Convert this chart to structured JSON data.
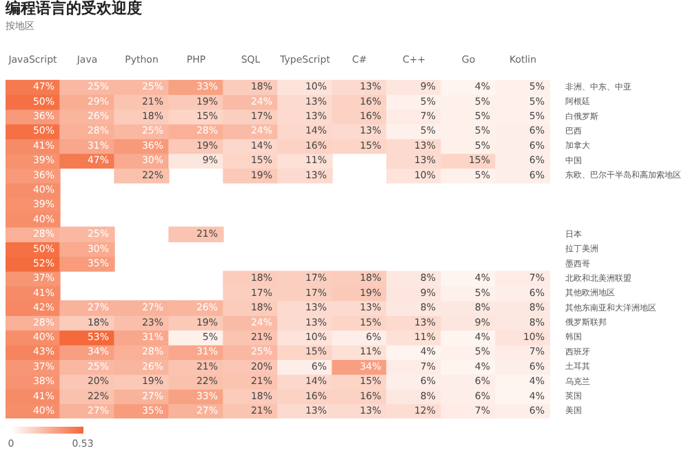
{
  "chart_data": {
    "type": "heatmap",
    "title": "编程语言的受欢迎度",
    "subtitle": "按地区",
    "categories": [
      "JavaScript",
      "Java",
      "Python",
      "PHP",
      "SQL",
      "TypeScript",
      "C#",
      "C++",
      "Go",
      "Kotlin"
    ],
    "y_categories": [
      "非洲、中东、中亚",
      "阿根廷",
      "白俄罗斯",
      "巴西",
      "加拿大",
      "中国",
      "东欧、巴尔干半岛和高加索地区",
      null,
      null,
      null,
      "日本",
      "拉丁美洲",
      "墨西哥",
      "北欧和北美洲联盟",
      "其他欧洲地区",
      "其他东南亚和大洋洲地区",
      "俄罗斯联邦",
      "韩国",
      "西班牙",
      "土耳其",
      "乌克兰",
      "英国",
      "美国"
    ],
    "color": "#f4693a",
    "clim": [
      0,
      0.53
    ],
    "cticks": [
      0,
      0.53
    ],
    "cells": [
      [
        0.47,
        0.25,
        0.25,
        0.33,
        0.18,
        0.1,
        0.13,
        0.09,
        0.04,
        0.05
      ],
      [
        0.5,
        0.29,
        0.21,
        0.19,
        0.24,
        0.13,
        0.16,
        0.05,
        0.05,
        0.05
      ],
      [
        0.36,
        0.26,
        0.18,
        0.15,
        0.17,
        0.13,
        0.16,
        0.07,
        0.05,
        0.05
      ],
      [
        0.5,
        0.28,
        0.25,
        0.28,
        0.24,
        0.14,
        0.13,
        0.05,
        0.05,
        0.06
      ],
      [
        0.41,
        0.31,
        0.36,
        0.19,
        0.14,
        0.16,
        0.15,
        0.13,
        0.05,
        0.06
      ],
      [
        0.39,
        0.47,
        0.3,
        0.09,
        0.15,
        0.11,
        null,
        0.13,
        0.15,
        0.06
      ],
      [
        0.36,
        null,
        0.22,
        null,
        0.19,
        0.13,
        null,
        0.1,
        0.05,
        0.06
      ],
      [
        0.4,
        null,
        null,
        null,
        null,
        null,
        null,
        null,
        null,
        null
      ],
      [
        0.39,
        null,
        null,
        null,
        null,
        null,
        null,
        null,
        null,
        null
      ],
      [
        0.4,
        null,
        null,
        null,
        null,
        null,
        null,
        null,
        null,
        null
      ],
      [
        0.28,
        0.25,
        null,
        0.21,
        null,
        null,
        null,
        null,
        null,
        null
      ],
      [
        0.5,
        0.3,
        null,
        null,
        null,
        null,
        null,
        null,
        null,
        null
      ],
      [
        0.52,
        0.35,
        null,
        null,
        null,
        null,
        null,
        null,
        null,
        null
      ],
      [
        0.37,
        null,
        null,
        null,
        0.18,
        0.17,
        0.18,
        0.08,
        0.04,
        0.07
      ],
      [
        0.41,
        null,
        null,
        null,
        0.17,
        0.17,
        0.19,
        0.09,
        0.05,
        0.06
      ],
      [
        0.42,
        0.27,
        0.27,
        0.26,
        0.18,
        0.13,
        0.13,
        0.08,
        0.08,
        0.08
      ],
      [
        0.28,
        0.18,
        0.23,
        0.19,
        0.24,
        0.13,
        0.15,
        0.13,
        0.09,
        0.08
      ],
      [
        0.4,
        0.53,
        0.31,
        0.05,
        0.21,
        0.1,
        0.06,
        0.11,
        0.04,
        0.1
      ],
      [
        0.43,
        0.34,
        0.28,
        0.31,
        0.25,
        0.15,
        0.11,
        0.04,
        0.05,
        0.07
      ],
      [
        0.37,
        0.25,
        0.26,
        0.21,
        0.2,
        0.06,
        0.34,
        0.07,
        0.04,
        0.06
      ],
      [
        0.38,
        0.2,
        0.19,
        0.22,
        0.21,
        0.14,
        0.15,
        0.06,
        0.06,
        0.04
      ],
      [
        0.41,
        0.22,
        0.27,
        0.33,
        0.18,
        0.16,
        0.16,
        0.08,
        0.06,
        0.04
      ],
      [
        0.4,
        0.27,
        0.35,
        0.27,
        0.21,
        0.13,
        0.13,
        0.12,
        0.07,
        0.06
      ]
    ],
    "cell_labels": [
      [
        "47%",
        "25%",
        "25%",
        "33%",
        "18%",
        "10%",
        "13%",
        "9%",
        "4%",
        "5%"
      ],
      [
        "50%",
        "29%",
        "21%",
        "19%",
        "24%",
        "13%",
        "16%",
        "5%",
        "5%",
        "5%"
      ],
      [
        "36%",
        "26%",
        "18%",
        "15%",
        "17%",
        "13%",
        "16%",
        "7%",
        "5%",
        "5%"
      ],
      [
        "50%",
        "28%",
        "25%",
        "28%",
        "24%",
        "14%",
        "13%",
        "5%",
        "5%",
        "6%"
      ],
      [
        "41%",
        "31%",
        "36%",
        "19%",
        "14%",
        "16%",
        "15%",
        "13%",
        "5%",
        "6%"
      ],
      [
        "39%",
        "47%",
        "30%",
        "9%",
        "15%",
        "11%",
        null,
        "13%",
        "15%",
        "6%"
      ],
      [
        "36%",
        null,
        "22%",
        null,
        "19%",
        "13%",
        null,
        "10%",
        "5%",
        "6%"
      ],
      [
        "40%",
        null,
        null,
        null,
        null,
        null,
        null,
        null,
        null,
        null
      ],
      [
        "39%",
        null,
        null,
        null,
        null,
        null,
        null,
        null,
        null,
        null
      ],
      [
        "40%",
        null,
        null,
        null,
        null,
        null,
        null,
        null,
        null,
        null
      ],
      [
        "28%",
        "25%",
        null,
        "21%",
        null,
        null,
        null,
        null,
        null,
        null
      ],
      [
        "50%",
        "30%",
        null,
        null,
        null,
        null,
        null,
        null,
        null,
        null
      ],
      [
        "52%",
        "35%",
        null,
        null,
        null,
        null,
        null,
        null,
        null,
        null
      ],
      [
        "37%",
        null,
        null,
        null,
        "18%",
        "17%",
        "18%",
        "8%",
        "4%",
        "7%"
      ],
      [
        "41%",
        null,
        null,
        null,
        "17%",
        "17%",
        "19%",
        "9%",
        "5%",
        "6%"
      ],
      [
        "42%",
        "27%",
        "27%",
        "26%",
        "18%",
        "13%",
        "13%",
        "8%",
        "8%",
        "8%"
      ],
      [
        "28%",
        "18%",
        "23%",
        "19%",
        "24%",
        "13%",
        "15%",
        "13%",
        "9%",
        "8%"
      ],
      [
        "40%",
        "53%",
        "31%",
        "5%",
        "21%",
        "10%",
        "6%",
        "11%",
        "4%",
        "10%"
      ],
      [
        "43%",
        "34%",
        "28%",
        "31%",
        "25%",
        "15%",
        "11%",
        "4%",
        "5%",
        "7%"
      ],
      [
        "37%",
        "25%",
        "26%",
        "21%",
        "20%",
        "6%",
        "34%",
        "7%",
        "4%",
        "6%"
      ],
      [
        "38%",
        "20%",
        "19%",
        "22%",
        "21%",
        "14%",
        "15%",
        "6%",
        "6%",
        "4%"
      ],
      [
        "41%",
        "22%",
        "27%",
        "33%",
        "18%",
        "16%",
        "16%",
        "8%",
        "6%",
        "4%"
      ],
      [
        "40%",
        "27%",
        "35%",
        "27%",
        "21%",
        "13%",
        "13%",
        "12%",
        "7%",
        "6%"
      ]
    ]
  }
}
